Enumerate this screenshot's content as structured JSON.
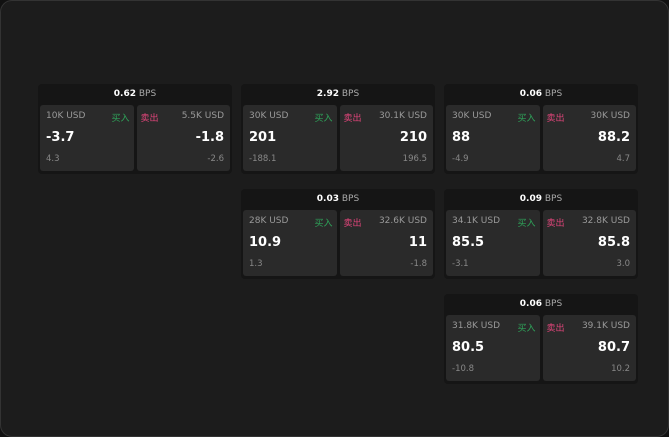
{
  "bps_unit": "BPS",
  "buy_label": "买入",
  "sell_label": "卖出",
  "colors": {
    "buy": "#2fa45a",
    "sell": "#e0457a"
  },
  "cards": [
    {
      "bps": "0.62",
      "buy": {
        "qty": "10K USD",
        "price": "-3.7",
        "change": "4.3"
      },
      "sell": {
        "qty": "5.5K USD",
        "price": "-1.8",
        "change": "-2.6"
      }
    },
    {
      "bps": "2.92",
      "buy": {
        "qty": "30K USD",
        "price": "201",
        "change": "-188.1"
      },
      "sell": {
        "qty": "30.1K USD",
        "price": "210",
        "change": "196.5"
      }
    },
    {
      "bps": "0.06",
      "buy": {
        "qty": "30K USD",
        "price": "88",
        "change": "-4.9"
      },
      "sell": {
        "qty": "30K USD",
        "price": "88.2",
        "change": "4.7"
      }
    },
    {
      "bps": "0.03",
      "buy": {
        "qty": "28K USD",
        "price": "10.9",
        "change": "1.3"
      },
      "sell": {
        "qty": "32.6K USD",
        "price": "11",
        "change": "-1.8"
      }
    },
    {
      "bps": "0.09",
      "buy": {
        "qty": "34.1K USD",
        "price": "85.5",
        "change": "-3.1"
      },
      "sell": {
        "qty": "32.8K USD",
        "price": "85.8",
        "change": "3.0"
      }
    },
    {
      "bps": "0.06",
      "buy": {
        "qty": "31.8K USD",
        "price": "80.5",
        "change": "-10.8"
      },
      "sell": {
        "qty": "39.1K USD",
        "price": "80.7",
        "change": "10.2"
      }
    }
  ]
}
